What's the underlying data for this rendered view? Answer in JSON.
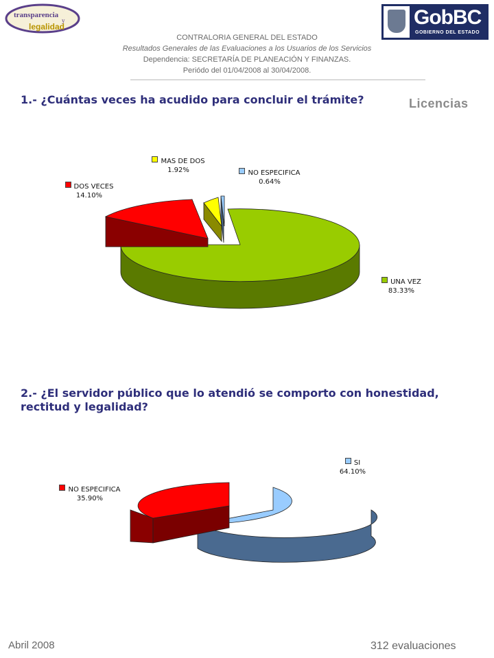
{
  "logos": {
    "left_line1": "transparencia",
    "left_line2": "y",
    "left_line3": "legalidad",
    "right_brand": "GobBC",
    "right_sub": "GOBIERNO DEL ESTADO"
  },
  "header": {
    "line1": "CONTRALORIA GENERAL DEL ESTADO",
    "line2": "Resultados Generales de las Evaluaciones a los Usuarios de los Servicios",
    "line3": "Dependencia: SECRETARÍA DE PLANEACIÓN Y FINANZAS.",
    "line4": "Periódo del 01/04/2008 al 30/04/2008."
  },
  "section": "Licencias",
  "questions": {
    "q1": "1.- ¿Cuántas veces ha acudido para concluir el trámite?",
    "q2_line1": "2.- ¿El servidor público que lo atendió se comporto con honestidad,",
    "q2_line2": "rectitud y legalidad?"
  },
  "chart_data": [
    {
      "type": "pie",
      "title": "1.- ¿Cuántas veces ha acudido para concluir el trámite?",
      "categories": [
        "UNA VEZ",
        "DOS VECES",
        "MAS DE DOS",
        "NO ESPECIFICA"
      ],
      "values": [
        83.33,
        14.1,
        1.92,
        0.64
      ],
      "value_labels": [
        "83.33%",
        "14.10%",
        "1.92%",
        "0.64%"
      ],
      "colors": [
        "#99cc00",
        "#ff0000",
        "#ffff00",
        "#99ccff"
      ]
    },
    {
      "type": "pie",
      "title": "2.- ¿El servidor público que lo atendió se comporto con honestidad, rectitud y legalidad?",
      "categories": [
        "SI",
        "NO ESPECIFICA"
      ],
      "values": [
        64.1,
        35.9
      ],
      "value_labels": [
        "64.10%",
        "35.90%"
      ],
      "colors": [
        "#99ccff",
        "#ff0000"
      ]
    }
  ],
  "footer": {
    "date": "Abril 2008",
    "count": "312 evaluaciones"
  }
}
